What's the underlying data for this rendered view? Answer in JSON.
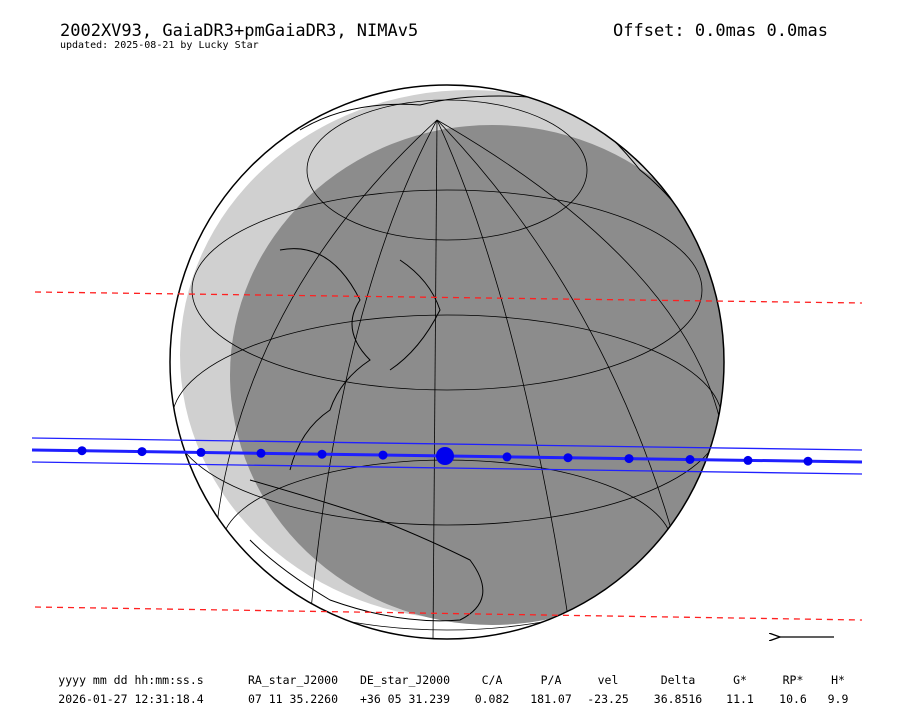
{
  "header": {
    "title": "2002XV93, GaiaDR3+pmGaiaDR3, NIMAv5",
    "subtitle": "updated: 2025-08-21 by Lucky Star",
    "offset": "Offset: 0.0mas 0.0mas"
  },
  "table": {
    "headers": [
      "yyyy mm dd hh:mm:ss.s",
      "RA_star_J2000",
      "DE_star_J2000",
      "C/A",
      "P/A",
      "vel",
      "Delta",
      "G*",
      "RP*",
      "H*"
    ],
    "rows": [
      [
        "2026-01-27 12:31:18.4",
        "07 11 35.2260",
        "+36 05 31.239",
        "0.082",
        "181.07",
        "-23.25",
        "36.8516",
        "11.1",
        "10.6",
        "9.9"
      ]
    ]
  }
}
